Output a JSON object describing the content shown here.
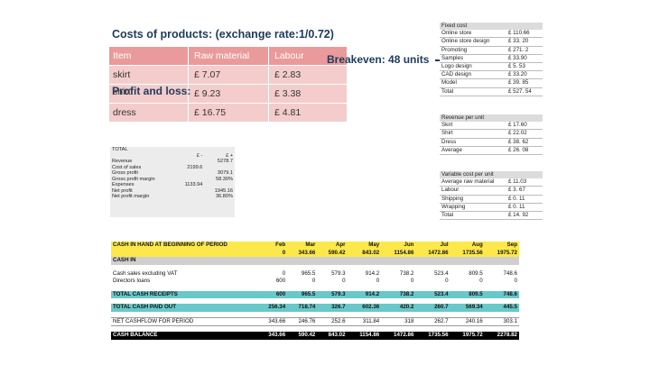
{
  "title": "Costs of products: (exchange rate:1/0.72)",
  "profit_loss_label": "Profit and loss:",
  "profit_loss_ghost": "shirt",
  "breakeven": "Breakeven: 48 units",
  "costs_table": {
    "headers": [
      "Item",
      "Raw material",
      "Labour"
    ],
    "rows": [
      [
        "skirt",
        "£ 7.07",
        "£ 2.83"
      ],
      [
        "",
        "£ 9.23",
        "£ 3.38"
      ],
      [
        "dress",
        "£ 16.75",
        "£ 4.81"
      ]
    ]
  },
  "fixed_cost": {
    "header": "Fixed cost",
    "rows": [
      [
        "Online store",
        "£ 110.66"
      ],
      [
        "Online store design",
        "£ 33. 20"
      ],
      [
        "Promoting",
        "£ 271. 2"
      ],
      [
        "Samples",
        "£ 33.90"
      ],
      [
        "Logo design",
        "£ 5. 53"
      ],
      [
        "CAD design",
        "£ 33.20"
      ],
      [
        "Model",
        "£ 39. 85"
      ],
      [
        "Total",
        "£ 527. 54"
      ]
    ]
  },
  "revenue_per_unit": {
    "header": "Revenue per unit",
    "rows": [
      [
        "Skirt",
        "£ 17.60"
      ],
      [
        "Shirt",
        "£ 22.02"
      ],
      [
        "Dress",
        "£ 38. 62"
      ],
      [
        "Average",
        "£ 26. 08"
      ]
    ]
  },
  "variable_cost": {
    "header": "Variable cost per unit",
    "rows": [
      [
        "Average raw material",
        "£ 11.03"
      ],
      [
        "Labour",
        "£ 3. 67"
      ],
      [
        "Shipping",
        "£ 0. 11"
      ],
      [
        "Wrapping",
        "£ 0. 11"
      ],
      [
        "Total",
        "£ 14. 92"
      ]
    ]
  },
  "total_panel": {
    "title": "TOTAL",
    "col_a": "£ -",
    "col_b": "£ +",
    "rows": [
      [
        "Revenue",
        "",
        "5278.7"
      ],
      [
        "Cost of sales",
        "2199.6",
        ""
      ],
      [
        "Gross profit",
        "",
        "3079.1"
      ],
      [
        "Gross profit margin",
        "",
        "58.30%"
      ],
      [
        "Expenses",
        "1133.94",
        ""
      ],
      [
        "Net profit",
        "",
        "1945.16"
      ],
      [
        "Net profit margin",
        "",
        "36.80%"
      ]
    ]
  },
  "cash_table": {
    "months": [
      "Feb",
      "Mar",
      "Apr",
      "May",
      "Jun",
      "Jul",
      "Aug",
      "Sep"
    ],
    "opening_label": "CASH IN HAND AT BEGINNING OF PERIOD",
    "opening": [
      "0",
      "343.66",
      "590.42",
      "843.02",
      "1154.86",
      "1472.86",
      "1735.56",
      "1975.72"
    ],
    "cash_in_label": "CASH IN",
    "sales_label": "Cash sales excluding VAT",
    "sales": [
      "0",
      "965.5",
      "579.3",
      "914.2",
      "738.2",
      "523.4",
      "809.5",
      "748.6"
    ],
    "loans_label": "Directors loans",
    "loans": [
      "600",
      "0",
      "0",
      "0",
      "0",
      "0",
      "0",
      "0"
    ],
    "receipts_label": "TOTAL CASH RECEIPTS",
    "receipts": [
      "600",
      "965.5",
      "579.3",
      "914.2",
      "738.2",
      "523.4",
      "809.5",
      "748.6"
    ],
    "paid_label": "TOTAL CASH PAID OUT",
    "paid": [
      "256.34",
      "718.74",
      "326.7",
      "602.36",
      "420.2",
      "260.7",
      "569.34",
      "445.5"
    ],
    "net_label": "NET CASHFLOW FOR PERIOD",
    "net": [
      "343.66",
      "246.76",
      "252.6",
      "311.84",
      "318",
      "262.7",
      "240.16",
      "303.1"
    ],
    "balance_label": "CASH BALANCE",
    "balance": [
      "343.66",
      "590.42",
      "843.02",
      "1154.86",
      "1472.86",
      "1735.56",
      "1975.72",
      "2278.82"
    ]
  }
}
